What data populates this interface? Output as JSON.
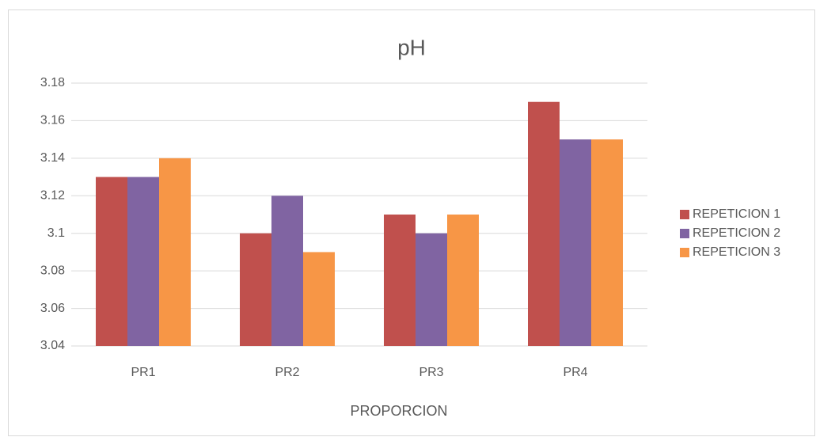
{
  "chart_data": {
    "type": "bar",
    "title": "pH",
    "x_label": "PROPORCION",
    "categories": [
      "PR1",
      "PR2",
      "PR3",
      "PR4"
    ],
    "series": [
      {
        "name": "REPETICION 1",
        "color": "#c0504d",
        "values": [
          3.13,
          3.1,
          3.11,
          3.17
        ]
      },
      {
        "name": "REPETICION 2",
        "color": "#8064a2",
        "values": [
          3.13,
          3.12,
          3.1,
          3.15
        ]
      },
      {
        "name": "REPETICION 3",
        "color": "#f79646",
        "values": [
          3.14,
          3.09,
          3.11,
          3.15
        ]
      }
    ],
    "ylim": [
      3.04,
      3.18
    ],
    "yticks": [
      3.04,
      3.06,
      3.08,
      3.1,
      3.12,
      3.14,
      3.16,
      3.18
    ],
    "grid": true,
    "legend": "right"
  }
}
